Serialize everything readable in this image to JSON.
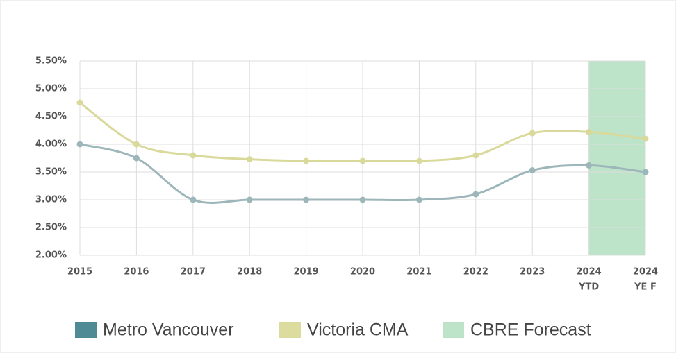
{
  "chart_data": {
    "type": "line",
    "categories": [
      "2015",
      "2016",
      "2017",
      "2018",
      "2019",
      "2020",
      "2021",
      "2022",
      "2023",
      [
        "2024",
        "YTD"
      ],
      [
        "2024",
        "YE F"
      ]
    ],
    "series": [
      {
        "name": "Metro Vancouver",
        "color": "#9db6ba",
        "legend_color": "#4f8b94",
        "values": [
          4.0,
          3.75,
          3.0,
          3.0,
          3.0,
          3.0,
          3.0,
          3.1,
          3.53,
          3.62,
          3.5
        ]
      },
      {
        "name": "Victoria CMA",
        "color": "#d9d99b",
        "legend_color": "#dcdc9e",
        "values": [
          4.75,
          4.0,
          3.8,
          3.73,
          3.7,
          3.7,
          3.7,
          3.8,
          4.2,
          4.22,
          4.1
        ]
      }
    ],
    "shaded_region": {
      "name": "CBRE Forecast",
      "color": "#bde4c9",
      "xrange": [
        9,
        10
      ]
    },
    "ylim": [
      2.0,
      5.5
    ],
    "yticks": [
      {
        "value": 2.0,
        "label": "2.00%"
      },
      {
        "value": 2.5,
        "label": "2.50%"
      },
      {
        "value": 3.0,
        "label": "3.00%"
      },
      {
        "value": 3.5,
        "label": "3.50%"
      },
      {
        "value": 4.0,
        "label": "4.00%"
      },
      {
        "value": 4.5,
        "label": "4.50%"
      },
      {
        "value": 5.0,
        "label": "5.00%"
      },
      {
        "value": 5.5,
        "label": "5.50%"
      }
    ],
    "grid": true
  }
}
